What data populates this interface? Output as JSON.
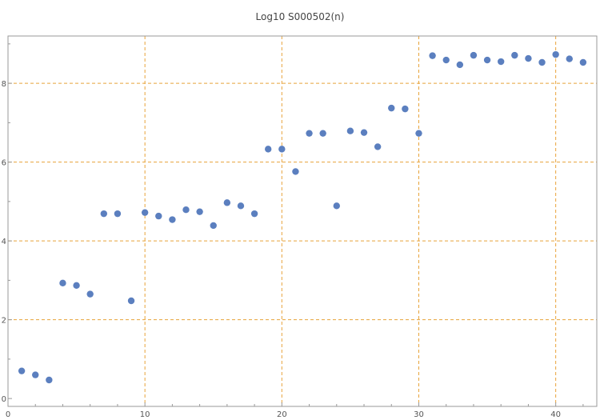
{
  "chart_data": {
    "type": "scatter",
    "title": "Log10 S000502(n)",
    "xlabel": "",
    "ylabel": "",
    "xlim": [
      0,
      43
    ],
    "ylim": [
      -0.2,
      9.2
    ],
    "x_ticks": [
      0,
      10,
      20,
      30,
      40
    ],
    "y_ticks": [
      0,
      2,
      4,
      6,
      8
    ],
    "grid_x": [
      10,
      20,
      30,
      40
    ],
    "grid_y": [
      2,
      4,
      6,
      8
    ],
    "grid": true,
    "colors": {
      "points": "#5b7fbf",
      "grid": "#e8a33a",
      "axis": "#999999"
    },
    "series": [
      {
        "x": [
          1,
          2,
          3,
          4,
          5,
          6,
          7,
          8,
          9,
          10,
          11,
          12,
          13,
          14,
          15,
          16,
          17,
          18,
          19,
          20,
          21,
          22,
          23,
          24,
          25,
          26,
          27,
          28,
          29,
          30,
          31,
          32,
          33,
          34,
          35,
          36,
          37,
          38,
          39,
          40,
          41,
          42
        ],
        "y": [
          0.7,
          0.6,
          0.47,
          2.93,
          2.87,
          2.65,
          4.69,
          4.69,
          2.48,
          4.72,
          4.63,
          4.54,
          4.79,
          4.74,
          4.39,
          4.97,
          4.89,
          4.69,
          6.33,
          6.33,
          5.76,
          6.73,
          6.73,
          4.89,
          6.79,
          6.75,
          6.39,
          7.37,
          7.35,
          6.73,
          8.7,
          8.59,
          8.47,
          8.71,
          8.59,
          8.55,
          8.71,
          8.63,
          8.53,
          8.73,
          8.62,
          8.53
        ]
      }
    ]
  }
}
